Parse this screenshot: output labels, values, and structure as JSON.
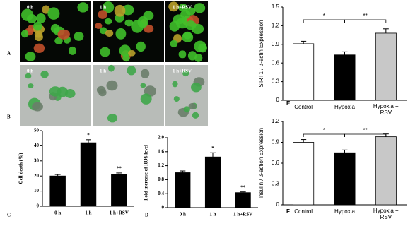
{
  "image_panels": [
    {
      "label": "A",
      "captions": [
        "0 h",
        "1 h",
        "1 h+RSV"
      ]
    },
    {
      "label": "B",
      "captions": [
        "0 h",
        "1 h",
        "1 h+RSV"
      ]
    }
  ],
  "chart_data": [
    {
      "type": "bar",
      "panel_label": "C",
      "ylabel": "Cell death (%)",
      "categories": [
        "0 h",
        "1 h",
        "1 h+RSV"
      ],
      "values": [
        20,
        42,
        21
      ],
      "errors": [
        1,
        2,
        1
      ],
      "colors": [
        "#000000",
        "#000000",
        "#000000"
      ],
      "stars": [
        null,
        "*",
        "**"
      ],
      "ylim": [
        0,
        50
      ],
      "yticks": [
        0,
        10,
        20,
        30,
        40,
        50
      ]
    },
    {
      "type": "bar",
      "panel_label": "D",
      "ylabel": "Fold increase of ROS level",
      "categories": [
        "0 h",
        "1 h",
        "1 h+RSV"
      ],
      "values": [
        1.0,
        1.45,
        0.43
      ],
      "errors": [
        0.05,
        0.12,
        0.02
      ],
      "colors": [
        "#000000",
        "#000000",
        "#000000"
      ],
      "stars": [
        null,
        "*",
        "**"
      ],
      "ylim": [
        0,
        2
      ],
      "yticks": [
        0,
        0.4,
        0.8,
        1.2,
        1.6,
        {
          "value": 2,
          "label": "2.0"
        }
      ]
    },
    {
      "type": "bar",
      "panel_label": "E",
      "ylabel": "SIRT1 / β-actin Expression",
      "categories": [
        "Control",
        "Hypoxia",
        "Hypoxia + RSV"
      ],
      "values": [
        0.91,
        0.73,
        1.08
      ],
      "errors": [
        0.04,
        0.05,
        0.07
      ],
      "colors": [
        "#ffffff",
        "#000000",
        "#c8c8c8"
      ],
      "brackets": [
        {
          "between": [
            "Control",
            "Hypoxia"
          ],
          "label": "*"
        },
        {
          "between": [
            "Hypoxia",
            "Hypoxia + RSV"
          ],
          "label": "**"
        }
      ],
      "ylim": [
        0,
        1.5
      ],
      "yticks": [
        0,
        0.3,
        0.6,
        0.9,
        1.2,
        1.5
      ]
    },
    {
      "type": "bar",
      "panel_label": "F",
      "ylabel": "Insulin / β-action Expression",
      "categories": [
        "Control",
        "Hypoxia",
        "Hypoxia + RSV"
      ],
      "values": [
        0.9,
        0.75,
        0.98
      ],
      "errors": [
        0.04,
        0.04,
        0.04
      ],
      "colors": [
        "#ffffff",
        "#000000",
        "#c8c8c8"
      ],
      "brackets": [
        {
          "between": [
            "Control",
            "Hypoxia"
          ],
          "label": "*"
        },
        {
          "between": [
            "Hypoxia",
            "Hypoxia + RSV"
          ],
          "label": "**"
        }
      ],
      "ylim": [
        0,
        1.2
      ],
      "yticks": [
        0,
        0.3,
        0.6,
        0.9,
        1.2
      ]
    }
  ]
}
